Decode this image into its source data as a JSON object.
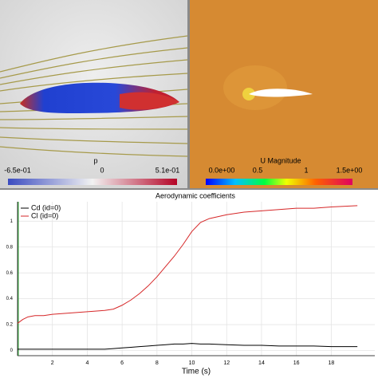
{
  "panels": [
    {
      "colorbar": {
        "title": "p",
        "labels": [
          "-6.5e-01",
          "0",
          "5.1e-01"
        ]
      }
    },
    {
      "colorbar": {
        "title": "U Magnitude",
        "labels": [
          "0.0e+00",
          "0.5",
          "1",
          "1.5e+00"
        ]
      }
    }
  ],
  "chart_data": {
    "type": "line",
    "title": "Aerodynamic coefficients",
    "x_label": "Time (s)",
    "x": [
      0,
      0.3,
      0.6,
      1,
      1.5,
      2,
      3,
      4,
      5,
      5.5,
      6,
      6.5,
      7,
      7.5,
      8,
      8.5,
      9,
      9.5,
      10,
      10.5,
      11,
      12,
      13,
      14,
      15,
      16,
      17,
      18,
      19.5
    ],
    "series": [
      {
        "name": "Cd (id=0)",
        "color": "#000000",
        "values": [
          0.01,
          0.01,
          0.01,
          0.01,
          0.01,
          0.01,
          0.01,
          0.01,
          0.01,
          0.015,
          0.02,
          0.025,
          0.03,
          0.035,
          0.04,
          0.045,
          0.05,
          0.05,
          0.055,
          0.05,
          0.05,
          0.045,
          0.04,
          0.04,
          0.035,
          0.035,
          0.035,
          0.03,
          0.03
        ]
      },
      {
        "name": "Cl (id=0)",
        "color": "#d62728",
        "values": [
          0.21,
          0.24,
          0.26,
          0.27,
          0.27,
          0.28,
          0.29,
          0.3,
          0.31,
          0.32,
          0.35,
          0.39,
          0.44,
          0.5,
          0.57,
          0.65,
          0.73,
          0.82,
          0.92,
          0.99,
          1.02,
          1.05,
          1.07,
          1.08,
          1.09,
          1.1,
          1.1,
          1.11,
          1.12
        ]
      }
    ],
    "xlim": [
      0,
      20.5
    ],
    "ylim": [
      -0.04,
      1.15
    ],
    "xticks": [
      2,
      4,
      6,
      8,
      10,
      12,
      14,
      16,
      18
    ],
    "yticks": [
      0,
      0.2,
      0.4,
      0.6,
      0.8,
      1
    ],
    "grid": true,
    "legend": "top-left"
  }
}
